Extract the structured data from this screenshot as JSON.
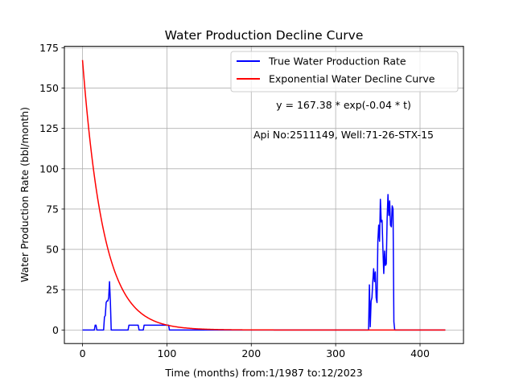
{
  "chart_data": {
    "type": "line",
    "title": "Water Production Decline Curve",
    "xlabel": "Time (months) from:1/1987 to:12/2023",
    "ylabel": "Water Production Rate (bbl/month)",
    "xlim": [
      -21.5,
      451.5
    ],
    "ylim": [
      -8.4,
      175.9
    ],
    "xticks": [
      0,
      100,
      200,
      300,
      400
    ],
    "yticks": [
      0,
      25,
      50,
      75,
      100,
      125,
      150,
      175
    ],
    "grid": true,
    "legend_position": "top-right",
    "annotations": [
      "y = 167.38 * exp(-0.04 * t)",
      "Api No:2511149, Well:71-26-STX-15"
    ],
    "series": [
      {
        "name": "True Water Production Rate",
        "color": "#0000ff",
        "x": [
          0,
          14,
          15,
          16,
          17,
          25,
          26,
          27,
          28,
          29,
          30,
          31,
          32,
          33,
          34,
          54,
          55,
          66,
          67,
          71,
          72,
          73,
          74,
          75,
          76,
          102,
          103,
          339,
          340,
          341,
          342,
          343,
          344,
          345,
          346,
          347,
          348,
          349,
          350,
          351,
          352,
          353,
          354,
          355,
          356,
          357,
          358,
          359,
          360,
          361,
          362,
          363,
          364,
          365,
          366,
          367,
          368,
          369,
          370,
          371,
          372,
          373,
          374,
          375,
          376,
          377,
          378,
          379,
          380,
          381,
          430
        ],
        "y": [
          0,
          0,
          3,
          3,
          0,
          0,
          8,
          9,
          17,
          18,
          18,
          20,
          30,
          18,
          0,
          0,
          3,
          3,
          0,
          0,
          0,
          3,
          3,
          3,
          3,
          3,
          0,
          0,
          28,
          2,
          18,
          20,
          30,
          38,
          30,
          36,
          20,
          17,
          55,
          65,
          55,
          81,
          67,
          68,
          50,
          35,
          49,
          40,
          41,
          69,
          84,
          71,
          80,
          65,
          64,
          77,
          75,
          5,
          0,
          0,
          0,
          0,
          0,
          0,
          0,
          0,
          0,
          0,
          0,
          0,
          0
        ]
      },
      {
        "name": "Exponential Water Decline Curve",
        "color": "#ff0000",
        "function": "exponential",
        "a": 167.38,
        "b": -0.04,
        "x_range": [
          0,
          430
        ]
      }
    ]
  }
}
